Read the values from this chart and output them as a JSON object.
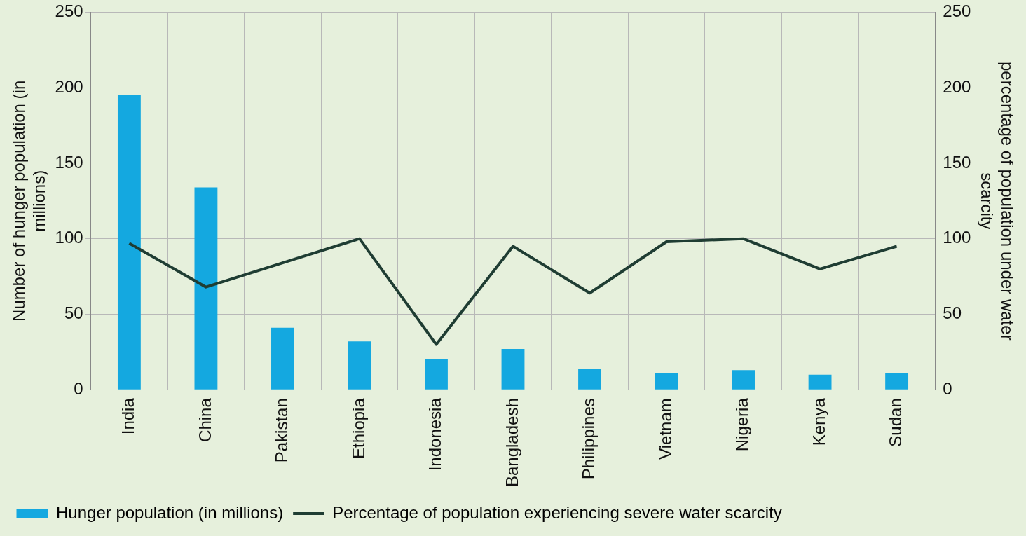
{
  "chart_data": {
    "type": "bar",
    "ylabel": "Number of hunger population (in millions)",
    "y2label": "percentage of population under water scarcity",
    "categories": [
      "India",
      "China",
      "Pakistan",
      "Ethiopia",
      "Indonesia",
      "Bangladesh",
      "Philippines",
      "Vietnam",
      "Nigeria",
      "Kenya",
      "Sudan"
    ],
    "series": [
      {
        "name": "Hunger population (in millions)",
        "color": "#14a8e0",
        "values": [
          195,
          134,
          41,
          32,
          20,
          27,
          14,
          11,
          13,
          10,
          11
        ]
      },
      {
        "name": "Percentage of population experiencing severe water scarcity",
        "type": "line",
        "axis": "y2",
        "color": "#1f3d33",
        "values": [
          97,
          68,
          84,
          100,
          30,
          95,
          64,
          98,
          100,
          80,
          95
        ]
      }
    ],
    "ylim": [
      0,
      250
    ],
    "yticks": [
      0,
      50,
      100,
      150,
      200,
      250
    ],
    "y2lim": [
      0,
      250
    ],
    "y2ticks": [
      0,
      50,
      100,
      150,
      200,
      250
    ],
    "grid": true,
    "legend": "bottom",
    "marker": "none",
    "line_style": "solid"
  }
}
